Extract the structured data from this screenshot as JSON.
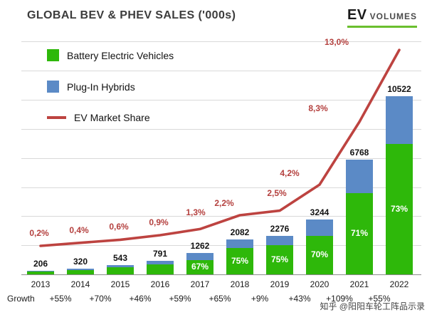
{
  "header": {
    "title": "GLOBAL BEV & PHEV SALES ('000s)",
    "logo_primary": "EV",
    "logo_secondary": "VOLUMES"
  },
  "legend": [
    {
      "label": "Battery Electric Vehicles",
      "color": "#2eb80a",
      "type": "square"
    },
    {
      "label": "Plug-In Hybrids",
      "color": "#5b8ac6",
      "type": "square"
    },
    {
      "label": "EV Market Share",
      "color": "#bd4340",
      "type": "line"
    }
  ],
  "chart_data": {
    "type": "bar",
    "title": "GLOBAL BEV & PHEV SALES ('000s)",
    "categories": [
      "2013",
      "2014",
      "2015",
      "2016",
      "2017",
      "2018",
      "2019",
      "2020",
      "2021",
      "2022"
    ],
    "totals": [
      206,
      320,
      543,
      791,
      1262,
      2082,
      2276,
      3244,
      6768,
      10522
    ],
    "series": [
      {
        "name": "Battery Electric Vehicles",
        "type": "bar",
        "color": "#2eb80a",
        "pct_labels": [
          "",
          "",
          "",
          "",
          "67%",
          "75%",
          "75%",
          "70%",
          "71%",
          "73%"
        ]
      },
      {
        "name": "Plug-In Hybrids",
        "type": "bar",
        "color": "#5b8ac6"
      },
      {
        "name": "EV Market Share",
        "type": "line",
        "color": "#bd4340",
        "values": [
          0.2,
          0.4,
          0.6,
          0.9,
          1.3,
          2.2,
          2.5,
          4.2,
          8.3,
          13.0
        ],
        "labels": [
          "0,2%",
          "0,4%",
          "0,6%",
          "0,9%",
          "1,3%",
          "2,2%",
          "2,5%",
          "4,2%",
          "8,3%",
          "13,0%"
        ]
      }
    ],
    "bev_fraction_estimate": [
      0.74,
      0.74,
      0.74,
      0.74,
      0.67,
      0.75,
      0.75,
      0.7,
      0.71,
      0.73
    ],
    "growth_label": "Growth",
    "growth_values": [
      "+55%",
      "+70%",
      "+46%",
      "+59%",
      "+65%",
      "+9%",
      "+43%",
      "+109%",
      "+55%"
    ],
    "ylim": [
      0,
      10522
    ],
    "grid": "horizontal",
    "legend_position": "top-left"
  },
  "watermark": "知乎 @阳阳车轮工阵品示录"
}
